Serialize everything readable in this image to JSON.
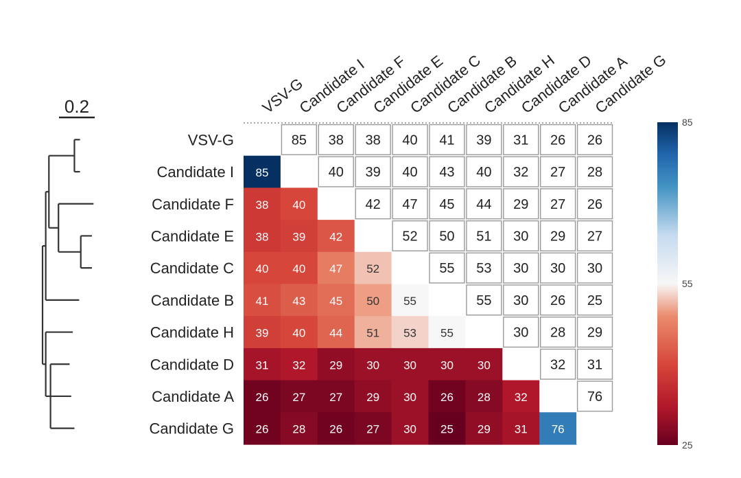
{
  "chart_data": {
    "type": "heatmap",
    "title": "",
    "xlabel": "",
    "ylabel": "",
    "columns": [
      "VSV-G",
      "Candidate I",
      "Candidate F",
      "Candidate E",
      "Candidate C",
      "Candidate B",
      "Candidate H",
      "Candidate D",
      "Candidate A",
      "Candidate G"
    ],
    "rows": [
      "VSV-G",
      "Candidate I",
      "Candidate F",
      "Candidate E",
      "Candidate C",
      "Candidate B",
      "Candidate H",
      "Candidate D",
      "Candidate A",
      "Candidate G"
    ],
    "values": [
      [
        null,
        85,
        38,
        38,
        40,
        41,
        39,
        31,
        26,
        26
      ],
      [
        85,
        null,
        40,
        39,
        40,
        43,
        40,
        32,
        27,
        28
      ],
      [
        38,
        40,
        null,
        42,
        47,
        45,
        44,
        29,
        27,
        26
      ],
      [
        38,
        39,
        42,
        null,
        52,
        50,
        51,
        30,
        29,
        27
      ],
      [
        40,
        40,
        47,
        52,
        null,
        55,
        53,
        30,
        30,
        30
      ],
      [
        41,
        43,
        45,
        50,
        55,
        null,
        55,
        30,
        26,
        25
      ],
      [
        39,
        40,
        44,
        51,
        53,
        55,
        null,
        30,
        28,
        29
      ],
      [
        31,
        32,
        29,
        30,
        30,
        30,
        30,
        null,
        32,
        31
      ],
      [
        26,
        27,
        27,
        29,
        30,
        26,
        28,
        32,
        null,
        76
      ],
      [
        26,
        28,
        26,
        27,
        30,
        25,
        29,
        31,
        76,
        null
      ]
    ],
    "lower_triangle": "colored",
    "upper_triangle": "white boxes with values",
    "colorbar": {
      "min": 25,
      "mid": 55,
      "max": 85,
      "tick_labels": [
        "85",
        "55",
        "25"
      ],
      "colormap": "diverging red-white-blue",
      "colors": {
        "low": "#67001f",
        "mid": "#f7f7f7",
        "high": "#053061"
      },
      "placement": "right"
    },
    "dendrogram": {
      "placement": "left",
      "scale_bar_label": "0.2",
      "tree": {
        "children": [
          {
            "children": [
              {
                "children": [
                  {
                    "children": [
                      {
                        "leaf": 0,
                        "length": 0.035
                      },
                      {
                        "leaf": 1,
                        "length": 0.035
                      }
                    ],
                    "length": 0.16
                  },
                  {
                    "children": [
                      {
                        "leaf": 2,
                        "length": 0.22
                      },
                      {
                        "children": [
                          {
                            "leaf": 3,
                            "length": 0.07
                          },
                          {
                            "leaf": 4,
                            "length": 0.07
                          }
                        ],
                        "length": 0.14
                      }
                    ],
                    "length": 0.06
                  }
                ],
                "length": 0.02
              },
              {
                "leaf": 5,
                "length": 0.21
              }
            ],
            "length": 0.02
          },
          {
            "children": [
              {
                "leaf": 6,
                "length": 0.17
              },
              {
                "children": [
                  {
                    "leaf": 7,
                    "length": 0.12
                  },
                  {
                    "leaf": 8,
                    "length": 0.13
                  },
                  {
                    "leaf": 9,
                    "length": 0.15
                  }
                ],
                "length": 0.03
              }
            ],
            "length": 0.02
          }
        ],
        "length": 0
      }
    }
  }
}
